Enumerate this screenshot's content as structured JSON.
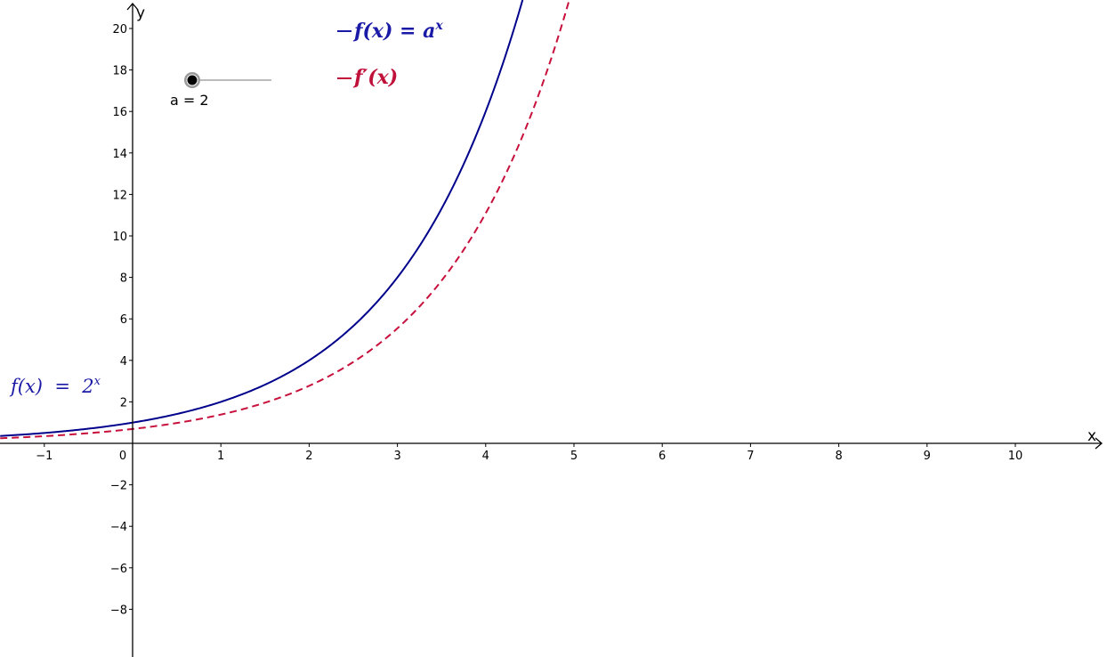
{
  "app": {
    "slider": {
      "variable": "a",
      "value": 2,
      "value_text": "a = 2",
      "min": 2,
      "max": 4
    },
    "legend": [
      {
        "text": "f(x) = a",
        "superscript": "x",
        "color": "#1a1aa6",
        "bold": true
      },
      {
        "text": "f′(x)",
        "superscript": "",
        "color": "#c0113b",
        "bold": true
      }
    ],
    "curve_label": {
      "text": "f(x)  =  2",
      "superscript": "x",
      "color": "#1a1aa6"
    }
  },
  "chart_data": {
    "type": "line",
    "title": "",
    "xlabel": "x",
    "ylabel": "y",
    "xlim": [
      -1.5,
      11.0
    ],
    "ylim": [
      -10.0,
      21.0
    ],
    "x_ticks": [
      -1,
      0,
      1,
      2,
      3,
      4,
      5,
      6,
      7,
      8,
      9,
      10
    ],
    "x_tick_labels": [
      "−1",
      "0",
      "1",
      "2",
      "3",
      "4",
      "5",
      "6",
      "7",
      "8",
      "9",
      "10"
    ],
    "y_ticks": [
      -8,
      -6,
      -4,
      -2,
      2,
      4,
      6,
      8,
      10,
      12,
      14,
      16,
      18,
      20
    ],
    "y_tick_labels": [
      "−8",
      "−6",
      "−4",
      "−2",
      "2",
      "4",
      "6",
      "8",
      "10",
      "12",
      "14",
      "16",
      "18",
      "20"
    ],
    "grid": false,
    "series": [
      {
        "expression": "f(x) = a^x",
        "color": "#00008b",
        "style": "solid",
        "x": [
          -1.5,
          -1,
          -0.5,
          0,
          0.5,
          1,
          1.5,
          2,
          2.5,
          3,
          3.5,
          4,
          4.4
        ],
        "y": [
          0.354,
          0.5,
          0.707,
          1,
          1.414,
          2,
          2.828,
          4,
          5.657,
          8,
          11.314,
          16,
          21.1
        ]
      },
      {
        "expression": "f'(x) = ln(a)·a^x",
        "color": "#c8103c",
        "style": "dashed",
        "x": [
          -1.5,
          -1,
          -0.5,
          0,
          0.5,
          1,
          1.5,
          2,
          2.5,
          3,
          3.5,
          4,
          4.5,
          4.93
        ],
        "y": [
          0.245,
          0.347,
          0.49,
          0.693,
          0.98,
          1.386,
          1.96,
          2.773,
          3.921,
          5.545,
          7.842,
          11.09,
          15.683,
          21.1
        ]
      }
    ]
  }
}
